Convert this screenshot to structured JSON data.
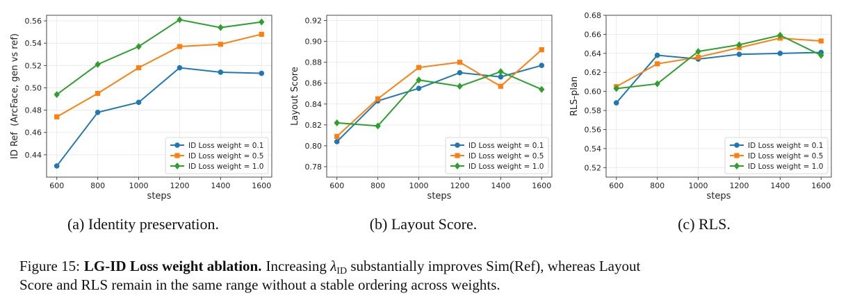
{
  "chart_data": [
    {
      "type": "line",
      "x": [
        600,
        800,
        1000,
        1200,
        1400,
        1600
      ],
      "xlabel": "steps",
      "ylabel": "ID Ref  (ArcFace, gen vs ref)",
      "ylim": [
        0.42,
        0.565
      ],
      "yticks": [
        0.44,
        0.46,
        0.48,
        0.5,
        0.52,
        0.54,
        0.56
      ],
      "yformat": 2,
      "grid": true,
      "legend": "lower-right",
      "series": [
        {
          "name": "ID Loss weight = 0.1",
          "color": "#1f77b4",
          "marker": "circle",
          "values": [
            0.43,
            0.478,
            0.487,
            0.518,
            0.514,
            0.513
          ]
        },
        {
          "name": "ID Loss weight = 0.5",
          "color": "#ff7f0e",
          "marker": "square",
          "values": [
            0.474,
            0.495,
            0.518,
            0.537,
            0.539,
            0.548
          ]
        },
        {
          "name": "ID Loss weight = 1.0",
          "color": "#2ca02c",
          "marker": "diamond",
          "values": [
            0.494,
            0.521,
            0.537,
            0.561,
            0.554,
            0.559
          ]
        }
      ],
      "subcaption": "(a) Identity preservation."
    },
    {
      "type": "line",
      "x": [
        600,
        800,
        1000,
        1200,
        1400,
        1600
      ],
      "xlabel": "steps",
      "ylabel": "Layout Score",
      "ylim": [
        0.77,
        0.925
      ],
      "yticks": [
        0.78,
        0.8,
        0.82,
        0.84,
        0.86,
        0.88,
        0.9,
        0.92
      ],
      "yformat": 2,
      "grid": true,
      "legend": "lower-right",
      "series": [
        {
          "name": "ID Loss weight = 0.1",
          "color": "#1f77b4",
          "marker": "circle",
          "values": [
            0.804,
            0.843,
            0.855,
            0.87,
            0.866,
            0.877
          ]
        },
        {
          "name": "ID Loss weight = 0.5",
          "color": "#ff7f0e",
          "marker": "square",
          "values": [
            0.809,
            0.845,
            0.875,
            0.88,
            0.857,
            0.892
          ]
        },
        {
          "name": "ID Loss weight = 1.0",
          "color": "#2ca02c",
          "marker": "diamond",
          "values": [
            0.822,
            0.819,
            0.863,
            0.857,
            0.871,
            0.854
          ]
        }
      ],
      "subcaption": "(b) Layout Score."
    },
    {
      "type": "line",
      "x": [
        600,
        800,
        1000,
        1200,
        1400,
        1600
      ],
      "xlabel": "steps",
      "ylabel": "RLS-plan",
      "ylim": [
        0.51,
        0.68
      ],
      "yticks": [
        0.52,
        0.54,
        0.56,
        0.58,
        0.6,
        0.62,
        0.64,
        0.66,
        0.68
      ],
      "yformat": 2,
      "grid": true,
      "legend": "lower-right",
      "series": [
        {
          "name": "ID Loss weight = 0.1",
          "color": "#1f77b4",
          "marker": "circle",
          "values": [
            0.588,
            0.638,
            0.634,
            0.639,
            0.64,
            0.641
          ]
        },
        {
          "name": "ID Loss weight = 0.5",
          "color": "#ff7f0e",
          "marker": "square",
          "values": [
            0.605,
            0.629,
            0.636,
            0.646,
            0.656,
            0.653
          ]
        },
        {
          "name": "ID Loss weight = 1.0",
          "color": "#2ca02c",
          "marker": "diamond",
          "values": [
            0.603,
            0.608,
            0.642,
            0.649,
            0.659,
            0.638
          ]
        }
      ],
      "subcaption": "(c) RLS."
    }
  ],
  "caption": {
    "label": "Figure 15:",
    "bold": "LG-ID Loss weight ablation.",
    "line1_pre": "Increasing ",
    "lambda": "λ",
    "lambda_sub": "ID",
    "line1_post": " substantially improves Sim(Ref), whereas Layout",
    "line2": "Score and RLS remain in the same range without a stable ordering across weights."
  }
}
